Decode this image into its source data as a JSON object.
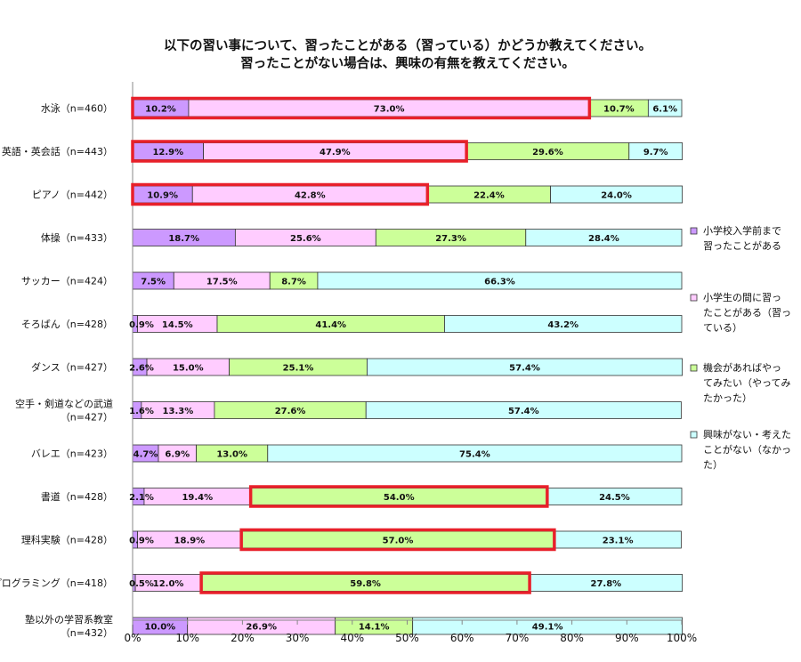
{
  "chart_data": {
    "type": "bar",
    "orientation": "horizontal",
    "stacked": "percent",
    "title_lines": [
      "以下の習い事について、習ったことがある（習っている）かどうか教えてください。",
      "習ったことがない場合は、興味の有無を教えてください。"
    ],
    "categories": [
      [
        "水泳（n=460）"
      ],
      [
        "英語・英会話（n=443）"
      ],
      [
        "ピアノ（n=442）"
      ],
      [
        "体操（n=433）"
      ],
      [
        "サッカー（n=424）"
      ],
      [
        "そろばん（n=428）"
      ],
      [
        "ダンス（n=427）"
      ],
      [
        "空手・剣道などの武道",
        "（n=427）"
      ],
      [
        "バレエ（n=423）"
      ],
      [
        "書道（n=428）"
      ],
      [
        "理科実験（n=428）"
      ],
      [
        "プログラミング（n=418）"
      ],
      [
        "塾以外の学習系教室",
        "（n=432）"
      ]
    ],
    "series": [
      {
        "name_lines": [
          "小学校入学前まで",
          "習ったことがある"
        ],
        "color": "#cc99ff",
        "values": [
          10.2,
          12.9,
          10.9,
          18.7,
          7.5,
          0.9,
          2.6,
          1.6,
          4.7,
          2.1,
          0.9,
          0.5,
          10.0
        ],
        "labels": [
          "10.2%",
          "12.9%",
          "10.9%",
          "18.7%",
          "7.5%",
          "0.9%",
          "2.6%",
          "1.6%",
          "4.7%",
          "2.1%",
          "0.9%",
          "0.5%",
          "10.0%"
        ]
      },
      {
        "name_lines": [
          "小学生の間に習っ",
          "たことがある（習っ",
          "ている）"
        ],
        "color": "#ffccff",
        "values": [
          73.0,
          47.9,
          42.8,
          25.6,
          17.5,
          14.5,
          15.0,
          13.3,
          6.9,
          19.4,
          18.9,
          12.0,
          26.9
        ],
        "labels": [
          "73.0%",
          "47.9%",
          "42.8%",
          "25.6%",
          "17.5%",
          "14.5%",
          "15.0%",
          "13.3%",
          "6.9%",
          "19.4%",
          "18.9%",
          "12.0%",
          "26.9%"
        ]
      },
      {
        "name_lines": [
          "機会があればやっ",
          "てみたい（やってみ",
          "たかった）"
        ],
        "color": "#ccff99",
        "values": [
          10.7,
          29.6,
          22.4,
          27.3,
          8.7,
          41.4,
          25.1,
          27.6,
          13.0,
          54.0,
          57.0,
          59.8,
          14.1
        ],
        "labels": [
          "10.7%",
          "29.6%",
          "22.4%",
          "27.3%",
          "8.7%",
          "41.4%",
          "25.1%",
          "27.6%",
          "13.0%",
          "54.0%",
          "57.0%",
          "59.8%",
          "14.1%"
        ]
      },
      {
        "name_lines": [
          "興味がない・考えた",
          "ことがない（なかっ",
          "た）"
        ],
        "color": "#ccffff",
        "values": [
          6.1,
          9.7,
          24.0,
          28.4,
          66.3,
          43.2,
          57.4,
          57.4,
          75.4,
          24.5,
          23.1,
          27.8,
          49.1
        ],
        "labels": [
          "6.1%",
          "9.7%",
          "24.0%",
          "28.4%",
          "66.3%",
          "43.2%",
          "57.4%",
          "57.4%",
          "75.4%",
          "24.5%",
          "23.1%",
          "27.8%",
          "49.1%"
        ]
      }
    ],
    "xaxis": {
      "ticks": [
        0,
        10,
        20,
        30,
        40,
        50,
        60,
        70,
        80,
        90,
        100
      ],
      "tick_labels": [
        "0%",
        "10%",
        "20%",
        "30%",
        "40%",
        "50%",
        "60%",
        "70%",
        "80%",
        "90%",
        "100%"
      ],
      "range": [
        0,
        100
      ]
    },
    "legend_position": "right",
    "highlights": [
      {
        "category_index": 0,
        "from": 0,
        "to": 83.2
      },
      {
        "category_index": 1,
        "from": 0,
        "to": 60.8
      },
      {
        "category_index": 2,
        "from": 0,
        "to": 53.7
      },
      {
        "category_index": 9,
        "from": 21.5,
        "to": 75.5
      },
      {
        "category_index": 10,
        "from": 19.8,
        "to": 76.8
      },
      {
        "category_index": 11,
        "from": 12.5,
        "to": 72.3
      }
    ],
    "colors": {
      "bar_border": "#333333",
      "highlight": "#e8202a"
    }
  }
}
